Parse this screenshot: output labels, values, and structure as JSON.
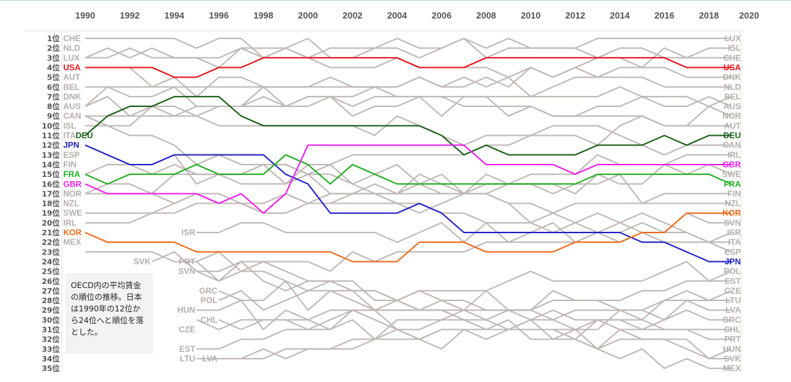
{
  "chart_data": {
    "type": "bump",
    "title": "",
    "years": [
      1990,
      1991,
      1992,
      1993,
      1994,
      1995,
      1996,
      1997,
      1998,
      1999,
      2000,
      2001,
      2002,
      2003,
      2004,
      2005,
      2006,
      2007,
      2008,
      2009,
      2010,
      2011,
      2012,
      2013,
      2014,
      2015,
      2016,
      2017,
      2018,
      2019
    ],
    "x_tick_labels": [
      "1990",
      "1992",
      "1994",
      "1996",
      "1998",
      "2000",
      "2002",
      "2004",
      "2006",
      "2008",
      "2010",
      "2012",
      "2014",
      "2016",
      "2018",
      "2020"
    ],
    "y_tick_labels": [
      "1位",
      "2位",
      "3位",
      "4位",
      "5位",
      "6位",
      "7位",
      "8位",
      "9位",
      "10位",
      "11位",
      "12位",
      "13位",
      "14位",
      "15位",
      "16位",
      "17位",
      "18位",
      "19位",
      "20位",
      "21位",
      "22位",
      "23位",
      "24位",
      "25位",
      "26位",
      "27位",
      "28位",
      "29位",
      "30位",
      "31位",
      "32位",
      "33位",
      "34位",
      "35位"
    ],
    "start_labels": [
      {
        "code": "CHE",
        "rank": 1
      },
      {
        "code": "NLD",
        "rank": 2
      },
      {
        "code": "LUX",
        "rank": 3
      },
      {
        "code": "USA",
        "rank": 4
      },
      {
        "code": "AUT",
        "rank": 5
      },
      {
        "code": "BEL",
        "rank": 6
      },
      {
        "code": "DNK",
        "rank": 7
      },
      {
        "code": "AUS",
        "rank": 8
      },
      {
        "code": "CAN",
        "rank": 9
      },
      {
        "code": "ISL",
        "rank": 10
      },
      {
        "code": "ITA",
        "rank": 11
      },
      {
        "code": "DEU",
        "rank": 11
      },
      {
        "code": "JPN",
        "rank": 12
      },
      {
        "code": "ESP",
        "rank": 13
      },
      {
        "code": "FIN",
        "rank": 14
      },
      {
        "code": "FRA",
        "rank": 15
      },
      {
        "code": "GBR",
        "rank": 16
      },
      {
        "code": "NOR",
        "rank": 17
      },
      {
        "code": "NZL",
        "rank": 18
      },
      {
        "code": "SWE",
        "rank": 19
      },
      {
        "code": "IRL",
        "rank": 20
      },
      {
        "code": "KOR",
        "rank": 21
      },
      {
        "code": "MEX",
        "rank": 22
      }
    ],
    "join_labels": [
      {
        "code": "ISR",
        "year": 1995,
        "rank": 21
      },
      {
        "code": "SVK",
        "year": 1993,
        "rank": 24
      },
      {
        "code": "PRT",
        "year": 1995,
        "rank": 24
      },
      {
        "code": "SVN",
        "year": 1995,
        "rank": 25
      },
      {
        "code": "GRC",
        "year": 1996,
        "rank": 27
      },
      {
        "code": "POL",
        "year": 1996,
        "rank": 28
      },
      {
        "code": "HUN",
        "year": 1995,
        "rank": 29
      },
      {
        "code": "CHL",
        "year": 1996,
        "rank": 30
      },
      {
        "code": "CZE",
        "year": 1995,
        "rank": 31
      },
      {
        "code": "EST",
        "year": 1995,
        "rank": 33
      },
      {
        "code": "LTU",
        "year": 1995,
        "rank": 34
      },
      {
        "code": "LVA",
        "year": 1996,
        "rank": 34
      }
    ],
    "end_labels": [
      "LUX",
      "ISL",
      "CHE",
      "USA",
      "DNK",
      "NLD",
      "BEL",
      "AUS",
      "NOR",
      "AUT",
      "DEU",
      "CAN",
      "IRL",
      "GBR",
      "SWE",
      "FRA",
      "FIN",
      "NZL",
      "KOR",
      "SVN",
      "ISR",
      "ITA",
      "ESP",
      "JPN",
      "POL",
      "EST",
      "CZE",
      "LTU",
      "LVA",
      "GRC",
      "CHL",
      "PRT",
      "HUN",
      "SVK",
      "MEX"
    ],
    "highlighted_series": [
      {
        "code": "USA",
        "color": "#e8141a",
        "ranks": [
          4,
          4,
          4,
          4,
          5,
          5,
          4,
          4,
          3,
          3,
          3,
          3,
          3,
          3,
          3,
          4,
          4,
          4,
          3,
          3,
          3,
          3,
          3,
          3,
          3,
          3,
          3,
          4,
          4,
          4
        ]
      },
      {
        "code": "DEU",
        "color": "#1a5f16",
        "ranks": [
          11,
          9,
          8,
          8,
          7,
          7,
          7,
          9,
          10,
          10,
          10,
          10,
          10,
          10,
          10,
          10,
          11,
          13,
          12,
          13,
          13,
          13,
          13,
          12,
          12,
          12,
          11,
          12,
          11,
          11
        ]
      },
      {
        "code": "JPN",
        "color": "#2121c8",
        "ranks": [
          12,
          13,
          14,
          14,
          13,
          13,
          13,
          13,
          13,
          15,
          16,
          19,
          19,
          19,
          19,
          18,
          19,
          21,
          21,
          21,
          21,
          21,
          21,
          21,
          21,
          22,
          22,
          23,
          24,
          24
        ]
      },
      {
        "code": "FRA",
        "color": "#1fae1f",
        "ranks": [
          15,
          16,
          15,
          15,
          15,
          14,
          15,
          15,
          15,
          13,
          14,
          16,
          14,
          15,
          16,
          16,
          16,
          16,
          16,
          16,
          16,
          16,
          16,
          15,
          15,
          15,
          15,
          15,
          15,
          16
        ]
      },
      {
        "code": "GBR",
        "color": "#f01ef0",
        "ranks": [
          16,
          17,
          17,
          17,
          17,
          17,
          18,
          17,
          19,
          17,
          12,
          12,
          12,
          12,
          12,
          12,
          12,
          12,
          14,
          14,
          14,
          14,
          15,
          14,
          14,
          14,
          14,
          14,
          14,
          14
        ]
      },
      {
        "code": "KOR",
        "color": "#f06a1a",
        "ranks": [
          21,
          22,
          22,
          22,
          22,
          23,
          23,
          23,
          23,
          23,
          23,
          23,
          24,
          24,
          24,
          22,
          22,
          22,
          23,
          23,
          23,
          23,
          22,
          22,
          22,
          21,
          21,
          19,
          19,
          19
        ]
      }
    ],
    "colors": {
      "background_series": "#c0b8b4",
      "label_gray": "#b6aeaa",
      "axis_text": "#555555"
    }
  },
  "note": {
    "lines": [
      "OECD内の平均賃金",
      "の順位の推移。日本",
      "は1990年の12位か",
      "ら24位へと順位を落",
      "とした。"
    ]
  }
}
